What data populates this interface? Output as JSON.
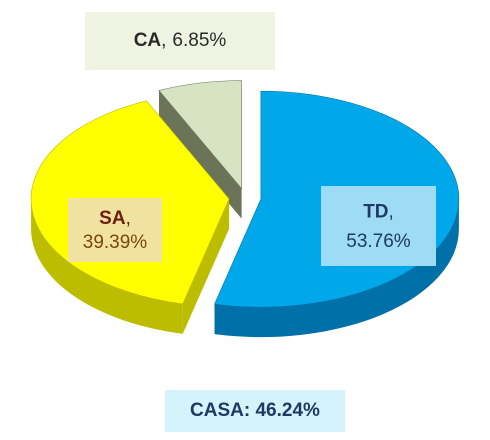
{
  "chart_data": {
    "type": "pie",
    "style": "3d-exploded",
    "categories": [
      "TD",
      "SA",
      "CA"
    ],
    "values": [
      53.76,
      39.39,
      6.85
    ],
    "value_labels": [
      "53.76%",
      "39.39%",
      "6.85%"
    ],
    "separator": ",",
    "colors": [
      "#00a8ea",
      "#ffff00",
      "#d7e4c4"
    ],
    "side_colors": [
      "#0070a8",
      "#bdbd00",
      "#6b7458"
    ],
    "annotation": "CASA: 46.24%"
  }
}
